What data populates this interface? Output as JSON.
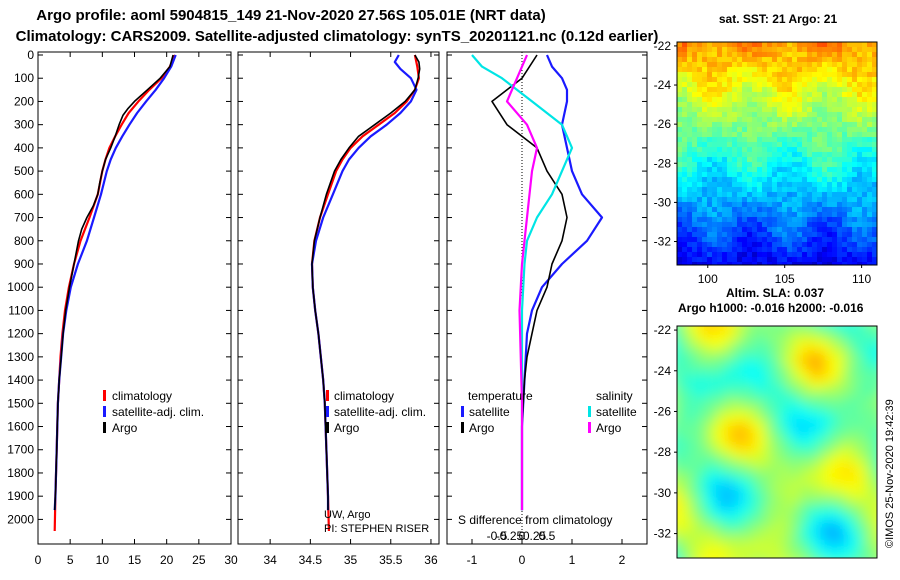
{
  "title_line1": "Argo profile: aoml 5904815_149 21-Nov-2020 27.56S 105.01E (NRT data)",
  "title_line2": "Climatology: CARS2009. Satellite-adjusted climatology: synTS_20201121.nc (0.12d earlier)",
  "colors": {
    "climatology": "#ff0000",
    "satellite": "#1a1aff",
    "argo": "#000000",
    "sat_salinity": "#00e5e5",
    "argo_salinity": "#ff00ff"
  },
  "chart_data": [
    {
      "type": "line",
      "title": "Temperature profile",
      "xlim": [
        0,
        30
      ],
      "ylim": [
        0,
        2050
      ],
      "y_inverted": true,
      "xticks": [
        0,
        5,
        10,
        15,
        20,
        25,
        30
      ],
      "yticks": [
        0,
        100,
        200,
        300,
        400,
        500,
        600,
        700,
        800,
        900,
        1000,
        1100,
        1200,
        1300,
        1400,
        1500,
        1600,
        1700,
        1800,
        1900,
        2000
      ],
      "legend": [
        "climatology",
        "satellite-adj. clim.",
        "Argo"
      ],
      "series": [
        {
          "name": "climatology",
          "color": "#ff0000",
          "points": [
            [
              21.3,
              0
            ],
            [
              20.5,
              50
            ],
            [
              19.2,
              100
            ],
            [
              17.3,
              150
            ],
            [
              15.6,
              200
            ],
            [
              14.1,
              250
            ],
            [
              13.0,
              300
            ],
            [
              12.0,
              350
            ],
            [
              11.1,
              400
            ],
            [
              10.5,
              450
            ],
            [
              10.0,
              500
            ],
            [
              9.3,
              600
            ],
            [
              8.0,
              700
            ],
            [
              6.6,
              800
            ],
            [
              5.6,
              900
            ],
            [
              4.8,
              1000
            ],
            [
              4.2,
              1100
            ],
            [
              3.8,
              1200
            ],
            [
              3.5,
              1300
            ],
            [
              3.3,
              1400
            ],
            [
              3.1,
              1500
            ],
            [
              2.9,
              1700
            ],
            [
              2.7,
              1900
            ],
            [
              2.6,
              2050
            ]
          ]
        },
        {
          "name": "satellite-adj. clim.",
          "color": "#1a1aff",
          "points": [
            [
              21.4,
              0
            ],
            [
              20.7,
              50
            ],
            [
              19.6,
              100
            ],
            [
              18.3,
              150
            ],
            [
              16.8,
              200
            ],
            [
              15.4,
              250
            ],
            [
              14.2,
              300
            ],
            [
              13.1,
              350
            ],
            [
              12.1,
              400
            ],
            [
              11.3,
              450
            ],
            [
              10.7,
              500
            ],
            [
              9.8,
              600
            ],
            [
              8.7,
              700
            ],
            [
              7.6,
              800
            ],
            [
              6.2,
              900
            ],
            [
              5.1,
              1000
            ],
            [
              4.4,
              1100
            ],
            [
              3.9,
              1200
            ],
            [
              3.6,
              1300
            ],
            [
              3.3,
              1400
            ],
            [
              3.1,
              1500
            ],
            [
              2.9,
              1700
            ],
            [
              2.7,
              1900
            ],
            [
              2.6,
              1960
            ]
          ]
        },
        {
          "name": "Argo",
          "color": "#000000",
          "points": [
            [
              21.0,
              0
            ],
            [
              20.5,
              50
            ],
            [
              19.0,
              100
            ],
            [
              17.0,
              150
            ],
            [
              15.0,
              200
            ],
            [
              14.0,
              230
            ],
            [
              13.2,
              260
            ],
            [
              12.6,
              300
            ],
            [
              12.0,
              350
            ],
            [
              11.3,
              400
            ],
            [
              10.5,
              450
            ],
            [
              10.0,
              500
            ],
            [
              9.6,
              550
            ],
            [
              9.3,
              600
            ],
            [
              8.6,
              650
            ],
            [
              7.6,
              700
            ],
            [
              6.8,
              750
            ],
            [
              6.3,
              800
            ],
            [
              5.6,
              900
            ],
            [
              4.9,
              1000
            ],
            [
              4.3,
              1100
            ],
            [
              3.9,
              1200
            ],
            [
              3.6,
              1300
            ],
            [
              3.3,
              1400
            ],
            [
              3.1,
              1500
            ],
            [
              2.9,
              1700
            ],
            [
              2.7,
              1900
            ],
            [
              2.6,
              1960
            ]
          ]
        }
      ]
    },
    {
      "type": "line",
      "title": "Salinity profile",
      "xlim": [
        33.6,
        36.1
      ],
      "ylim": [
        0,
        2050
      ],
      "y_inverted": true,
      "xticks": [
        34,
        34.5,
        35,
        35.5,
        36
      ],
      "xticklabels": [
        "34",
        "34.5",
        "35",
        "35.5",
        "36"
      ],
      "legend": [
        "climatology",
        "satellite-adj. clim.",
        "Argo"
      ],
      "annotations": [
        "UW, Argo",
        "PI: STEPHEN RISER"
      ],
      "series": [
        {
          "name": "climatology",
          "color": "#ff0000",
          "points": [
            [
              35.8,
              0
            ],
            [
              35.83,
              50
            ],
            [
              35.85,
              100
            ],
            [
              35.8,
              150
            ],
            [
              35.7,
              200
            ],
            [
              35.55,
              250
            ],
            [
              35.35,
              300
            ],
            [
              35.15,
              350
            ],
            [
              35.0,
              400
            ],
            [
              34.9,
              450
            ],
            [
              34.82,
              500
            ],
            [
              34.72,
              600
            ],
            [
              34.62,
              700
            ],
            [
              34.55,
              800
            ],
            [
              34.52,
              900
            ],
            [
              34.53,
              1000
            ],
            [
              34.56,
              1100
            ],
            [
              34.6,
              1200
            ],
            [
              34.63,
              1300
            ],
            [
              34.66,
              1400
            ],
            [
              34.68,
              1500
            ],
            [
              34.7,
              1700
            ],
            [
              34.72,
              1900
            ],
            [
              34.73,
              2050
            ]
          ]
        },
        {
          "name": "satellite-adj. clim.",
          "color": "#1a1aff",
          "points": [
            [
              35.6,
              0
            ],
            [
              35.55,
              30
            ],
            [
              35.62,
              60
            ],
            [
              35.75,
              100
            ],
            [
              35.82,
              150
            ],
            [
              35.75,
              200
            ],
            [
              35.62,
              250
            ],
            [
              35.45,
              300
            ],
            [
              35.25,
              350
            ],
            [
              35.1,
              400
            ],
            [
              34.98,
              450
            ],
            [
              34.9,
              500
            ],
            [
              34.78,
              600
            ],
            [
              34.66,
              700
            ],
            [
              34.57,
              800
            ],
            [
              34.52,
              900
            ],
            [
              34.53,
              1000
            ],
            [
              34.56,
              1100
            ],
            [
              34.6,
              1200
            ],
            [
              34.63,
              1300
            ],
            [
              34.66,
              1400
            ],
            [
              34.68,
              1500
            ],
            [
              34.7,
              1700
            ],
            [
              34.72,
              1900
            ],
            [
              34.72,
              1960
            ]
          ]
        },
        {
          "name": "Argo",
          "color": "#000000",
          "points": [
            [
              35.8,
              0
            ],
            [
              35.85,
              30
            ],
            [
              35.86,
              60
            ],
            [
              35.84,
              100
            ],
            [
              35.8,
              150
            ],
            [
              35.68,
              200
            ],
            [
              35.5,
              250
            ],
            [
              35.3,
              300
            ],
            [
              35.1,
              350
            ],
            [
              34.98,
              400
            ],
            [
              34.88,
              450
            ],
            [
              34.8,
              500
            ],
            [
              34.7,
              600
            ],
            [
              34.62,
              700
            ],
            [
              34.55,
              800
            ],
            [
              34.52,
              900
            ],
            [
              34.53,
              1000
            ],
            [
              34.56,
              1100
            ],
            [
              34.6,
              1200
            ],
            [
              34.63,
              1300
            ],
            [
              34.66,
              1400
            ],
            [
              34.68,
              1500
            ],
            [
              34.7,
              1700
            ],
            [
              34.72,
              1900
            ],
            [
              34.72,
              1960
            ]
          ]
        }
      ]
    },
    {
      "type": "line",
      "title": "S difference from climatology",
      "xlim": [
        -1.5,
        2.5
      ],
      "ylim": [
        0,
        2050
      ],
      "y_inverted": true,
      "xticks": [
        -0.5,
        -0.25,
        0,
        0.25,
        0.5
      ],
      "xticklabels": [
        "-0.5",
        "-0.25",
        "0",
        "0.25",
        "0.5"
      ],
      "xticks_secondary": [
        -1,
        0,
        1,
        2
      ],
      "legend_groups": {
        "temperature": [
          "satellite",
          "Argo"
        ],
        "salinity": [
          "satellite",
          "Argo"
        ]
      },
      "series": [
        {
          "name": "temperature satellite",
          "color": "#1a1aff",
          "points": [
            [
              0.5,
              0
            ],
            [
              0.6,
              50
            ],
            [
              0.8,
              100
            ],
            [
              0.9,
              150
            ],
            [
              0.9,
              200
            ],
            [
              0.8,
              300
            ],
            [
              0.9,
              400
            ],
            [
              1.0,
              500
            ],
            [
              1.2,
              600
            ],
            [
              1.6,
              700
            ],
            [
              1.3,
              800
            ],
            [
              0.8,
              900
            ],
            [
              0.4,
              1000
            ],
            [
              0.2,
              1100
            ],
            [
              0.1,
              1200
            ],
            [
              0.05,
              1400
            ],
            [
              0.0,
              1600
            ],
            [
              0.0,
              1960
            ]
          ]
        },
        {
          "name": "temperature Argo",
          "color": "#000000",
          "points": [
            [
              0.3,
              0
            ],
            [
              0.0,
              100
            ],
            [
              -0.6,
              200
            ],
            [
              -0.3,
              300
            ],
            [
              0.3,
              400
            ],
            [
              0.5,
              500
            ],
            [
              0.8,
              600
            ],
            [
              0.9,
              700
            ],
            [
              0.8,
              800
            ],
            [
              0.6,
              900
            ],
            [
              0.5,
              1000
            ],
            [
              0.3,
              1100
            ],
            [
              0.2,
              1200
            ],
            [
              0.1,
              1300
            ],
            [
              0.05,
              1400
            ],
            [
              0.0,
              1600
            ],
            [
              0.0,
              1960
            ]
          ]
        },
        {
          "name": "salinity satellite",
          "color": "#00e5e5",
          "points": [
            [
              -1.0,
              0
            ],
            [
              -0.8,
              50
            ],
            [
              -0.4,
              100
            ],
            [
              0.2,
              200
            ],
            [
              0.8,
              300
            ],
            [
              1.0,
              400
            ],
            [
              0.8,
              500
            ],
            [
              0.6,
              600
            ],
            [
              0.3,
              700
            ],
            [
              0.1,
              800
            ],
            [
              0.05,
              900
            ],
            [
              0.0,
              1100
            ],
            [
              0.0,
              1960
            ]
          ]
        },
        {
          "name": "salinity Argo",
          "color": "#ff00ff",
          "points": [
            [
              0.1,
              0
            ],
            [
              -0.1,
              100
            ],
            [
              -0.3,
              200
            ],
            [
              0.1,
              300
            ],
            [
              0.3,
              400
            ],
            [
              0.2,
              500
            ],
            [
              0.1,
              700
            ],
            [
              0.0,
              900
            ],
            [
              -0.05,
              1100
            ],
            [
              0.0,
              1500
            ],
            [
              0.0,
              1960
            ]
          ]
        }
      ]
    },
    {
      "type": "heatmap",
      "title": "sat. SST: 21 Argo: 21",
      "xlim": [
        98,
        111
      ],
      "ylim": [
        -33.2,
        -21.8
      ],
      "xticks": [
        100,
        105,
        110
      ],
      "yticks": [
        -22,
        -24,
        -26,
        -28,
        -30,
        -32
      ],
      "colormap": "jet"
    },
    {
      "type": "heatmap",
      "title": "Altim. SLA: 0.037",
      "subtitle": "Argo h1000: -0.016 h2000: -0.016",
      "ylim": [
        -33.2,
        -21.8
      ],
      "yticks": [
        -22,
        -24,
        -26,
        -28,
        -30,
        -32
      ],
      "colormap": "jet"
    }
  ],
  "watermark": "©IMOS 25-Nov-2020 19:42:39"
}
